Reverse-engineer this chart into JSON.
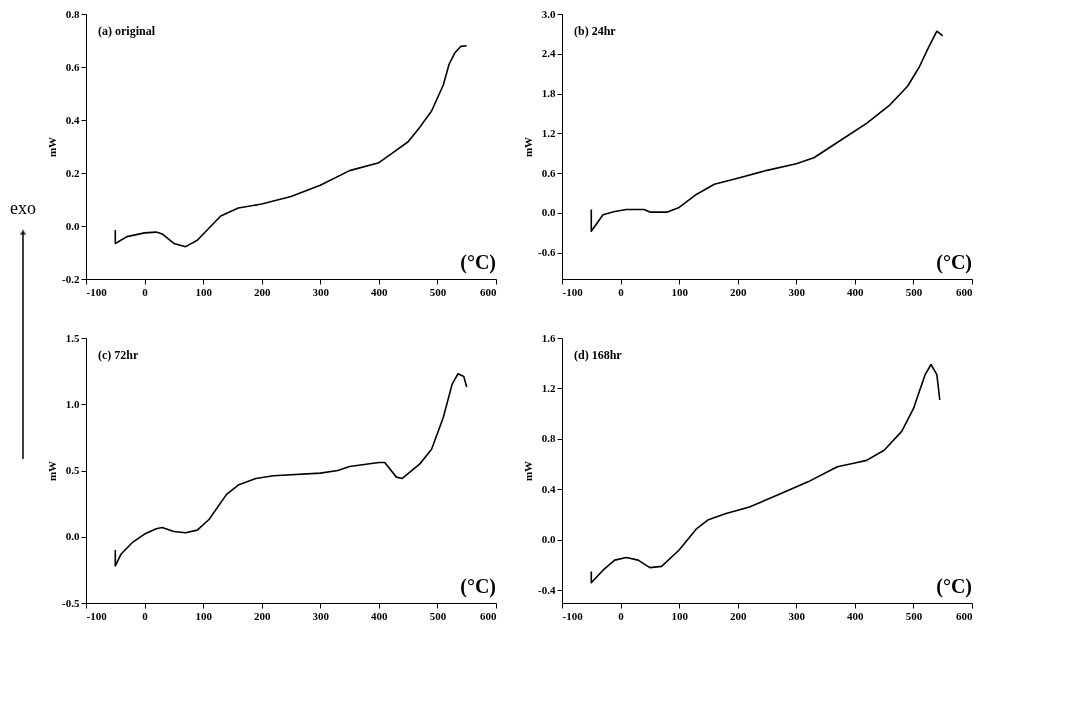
{
  "chart_data": [
    {
      "type": "line",
      "ylabel": "mW",
      "annotations": [
        "(a) original",
        "(°C)",
        "exo"
      ],
      "xlim": [
        -100,
        600
      ],
      "xticks": [
        -100,
        0,
        100,
        200,
        300,
        400,
        500,
        600
      ],
      "ylim": [
        -0.2,
        0.8
      ],
      "yticks": [
        -0.2,
        {
          "value": 0,
          "label": "0.0"
        },
        0.2,
        0.4,
        0.6,
        0.8
      ],
      "grid": false,
      "marker": "none",
      "line_style": "solid",
      "series": [
        {
          "color": "#000000",
          "x": [
            -50,
            -50,
            -30,
            0,
            20,
            30,
            50,
            70,
            90,
            130,
            160,
            200,
            250,
            300,
            350,
            400,
            420,
            450,
            470,
            490,
            510,
            520,
            530,
            540,
            550
          ],
          "values": [
            -0.015,
            -0.066,
            -0.04,
            -0.026,
            -0.023,
            -0.03,
            -0.066,
            -0.078,
            -0.054,
            0.038,
            0.068,
            0.083,
            0.111,
            0.154,
            0.209,
            0.239,
            0.27,
            0.318,
            0.373,
            0.434,
            0.532,
            0.611,
            0.654,
            0.678,
            0.68
          ]
        }
      ]
    },
    {
      "type": "line",
      "ylabel": "mW",
      "annotations": [
        "(b) 24hr",
        "(°C)"
      ],
      "xlim": [
        -100,
        600
      ],
      "xticks": [
        -100,
        0,
        100,
        200,
        300,
        400,
        500,
        600
      ],
      "ylim": [
        -1.0,
        3.0
      ],
      "yticks": [
        -0.6,
        {
          "value": 0,
          "label": "0.0"
        },
        0.6,
        1.2,
        1.8,
        2.4,
        {
          "value": 3,
          "label": "3.0"
        }
      ],
      "grid": false,
      "marker": "none",
      "line_style": "solid",
      "series": [
        {
          "color": "#000000",
          "x": [
            -50,
            -50,
            -30,
            -10,
            10,
            40,
            50,
            80,
            100,
            130,
            160,
            200,
            250,
            300,
            330,
            370,
            420,
            460,
            490,
            510,
            525,
            540,
            550
          ],
          "values": [
            0.05,
            -0.28,
            -0.03,
            0.02,
            0.05,
            0.05,
            0.01,
            0.01,
            0.08,
            0.28,
            0.43,
            0.52,
            0.64,
            0.74,
            0.83,
            1.06,
            1.35,
            1.63,
            1.91,
            2.2,
            2.48,
            2.74,
            2.67
          ]
        }
      ]
    },
    {
      "type": "line",
      "ylabel": "mW",
      "annotations": [
        "(c) 72hr",
        "(°C)"
      ],
      "xlim": [
        -100,
        600
      ],
      "xticks": [
        -100,
        0,
        100,
        200,
        300,
        400,
        500,
        600
      ],
      "ylim": [
        -0.5,
        1.5
      ],
      "yticks": [
        -0.5,
        {
          "value": 0,
          "label": "0.0"
        },
        0.5,
        {
          "value": 1,
          "label": "1.0"
        },
        1.5
      ],
      "grid": false,
      "marker": "none",
      "line_style": "solid",
      "series": [
        {
          "color": "#000000",
          "x": [
            -50,
            -50,
            -40,
            -20,
            0,
            20,
            30,
            50,
            70,
            90,
            110,
            140,
            160,
            190,
            220,
            300,
            330,
            350,
            400,
            410,
            430,
            440,
            470,
            490,
            510,
            525,
            535,
            545,
            550
          ],
          "values": [
            -0.1,
            -0.22,
            -0.13,
            -0.04,
            0.02,
            0.06,
            0.07,
            0.04,
            0.03,
            0.05,
            0.13,
            0.32,
            0.39,
            0.44,
            0.46,
            0.48,
            0.5,
            0.53,
            0.56,
            0.56,
            0.45,
            0.44,
            0.55,
            0.66,
            0.9,
            1.15,
            1.23,
            1.21,
            1.13
          ]
        }
      ]
    },
    {
      "type": "line",
      "ylabel": "mW",
      "annotations": [
        "(d) 168hr",
        "(°C)"
      ],
      "xlim": [
        -100,
        600
      ],
      "xticks": [
        -100,
        0,
        100,
        200,
        300,
        400,
        500,
        600
      ],
      "ylim": [
        -0.5,
        1.6
      ],
      "yticks": [
        -0.4,
        {
          "value": 0,
          "label": "0.0"
        },
        0.4,
        0.8,
        1.2,
        1.6
      ],
      "grid": false,
      "marker": "none",
      "line_style": "solid",
      "series": [
        {
          "color": "#000000",
          "x": [
            -50,
            -50,
            -30,
            -10,
            10,
            30,
            50,
            70,
            100,
            130,
            150,
            180,
            220,
            270,
            320,
            370,
            400,
            420,
            450,
            480,
            500,
            520,
            530,
            540,
            545
          ],
          "values": [
            -0.25,
            -0.34,
            -0.24,
            -0.16,
            -0.14,
            -0.16,
            -0.22,
            -0.21,
            -0.08,
            0.09,
            0.16,
            0.21,
            0.26,
            0.36,
            0.46,
            0.58,
            0.61,
            0.63,
            0.71,
            0.86,
            1.04,
            1.31,
            1.39,
            1.31,
            1.11
          ]
        }
      ]
    }
  ]
}
